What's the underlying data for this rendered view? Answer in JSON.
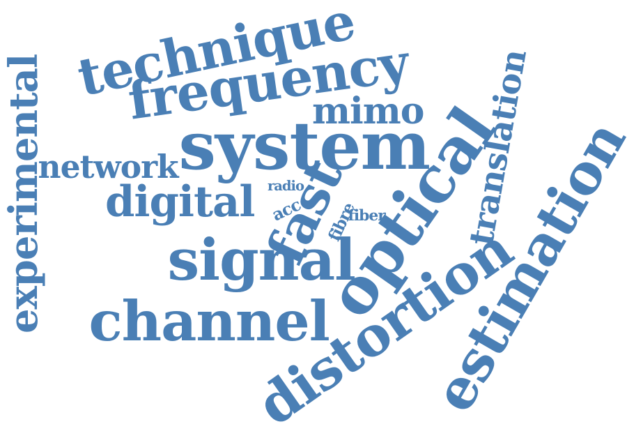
{
  "colors": {
    "word": "#4a7fb5",
    "background": "#ffffff"
  },
  "words": {
    "technique": "technique",
    "frequency": "frequency",
    "mimo": "mimo",
    "system": "system",
    "experimental": "experimental",
    "network": "network",
    "digital": "digital",
    "radio": "radio",
    "acc": "acc",
    "fast": "fast",
    "fibre": "fibre",
    "fiber": "fiber",
    "signal": "signal",
    "optical": "optical",
    "channel": "channel",
    "distortion": "distortion",
    "translation": "translation",
    "estimation": "estimation"
  }
}
